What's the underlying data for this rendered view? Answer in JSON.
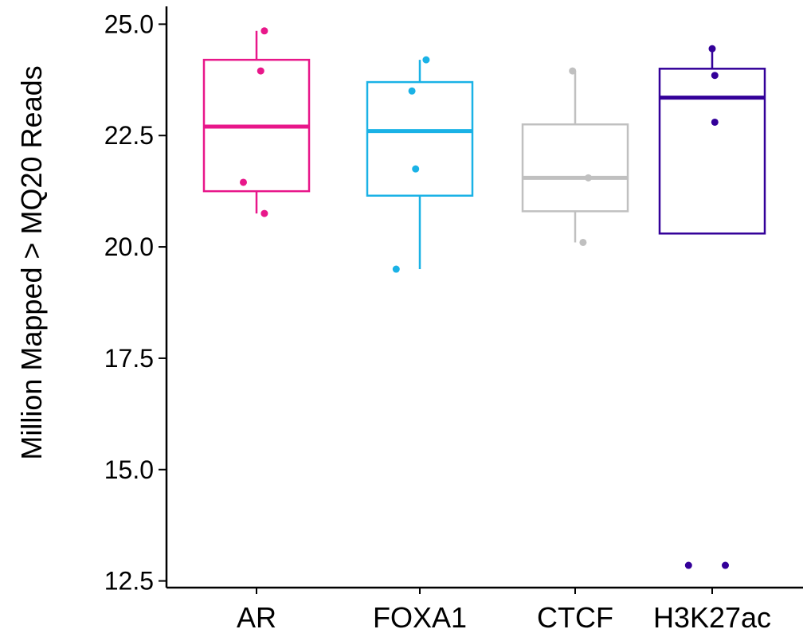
{
  "chart_data": {
    "type": "boxplot",
    "xlabel": "",
    "ylabel": "Million Mapped > MQ20 Reads",
    "ylim": [
      12.35,
      25.4
    ],
    "yticks": [
      12.5,
      15.0,
      17.5,
      20.0,
      22.5,
      25.0
    ],
    "ytick_labels": [
      "12.5",
      "15.0",
      "17.5",
      "20.0",
      "22.5",
      "25.0"
    ],
    "grid": false,
    "legend": "none",
    "categories": [
      "AR",
      "FOXA1",
      "CTCF",
      "H3K27ac"
    ],
    "series": [
      {
        "category": "AR",
        "color": "#e8178a",
        "box": {
          "whisker_low": 20.75,
          "q1": 21.25,
          "median": 22.7,
          "q3": 24.2,
          "whisker_high": 24.85
        },
        "points": [
          {
            "jitter": 0.15,
            "y": 24.85
          },
          {
            "jitter": 0.08,
            "y": 23.95
          },
          {
            "jitter": -0.25,
            "y": 21.45
          },
          {
            "jitter": 0.15,
            "y": 20.75
          }
        ]
      },
      {
        "category": "FOXA1",
        "color": "#1ab2e6",
        "box": {
          "whisker_low": 19.5,
          "q1": 21.15,
          "median": 22.6,
          "q3": 23.7,
          "whisker_high": 24.2
        },
        "points": [
          {
            "jitter": 0.12,
            "y": 24.2
          },
          {
            "jitter": -0.15,
            "y": 23.5
          },
          {
            "jitter": -0.08,
            "y": 21.75
          },
          {
            "jitter": -0.45,
            "y": 19.5
          }
        ]
      },
      {
        "category": "CTCF",
        "color": "#c0c0c0",
        "box": {
          "whisker_low": 20.1,
          "q1": 20.8,
          "median": 21.55,
          "q3": 22.75,
          "whisker_high": 23.95
        },
        "points": [
          {
            "jitter": -0.05,
            "y": 23.95
          },
          {
            "jitter": 0.25,
            "y": 21.55
          },
          {
            "jitter": 0.15,
            "y": 20.1
          }
        ]
      },
      {
        "category": "H3K27ac",
        "color": "#330099",
        "box": {
          "whisker_low": 20.3,
          "q1": 20.3,
          "median": 23.35,
          "q3": 24.0,
          "whisker_high": 24.45
        },
        "points": [
          {
            "jitter": -0.45,
            "y": 12.85
          },
          {
            "jitter": 0.0,
            "y": 24.45
          },
          {
            "jitter": 0.05,
            "y": 23.85
          },
          {
            "jitter": 0.05,
            "y": 22.8
          },
          {
            "jitter": 0.25,
            "y": 12.85
          }
        ]
      }
    ]
  }
}
